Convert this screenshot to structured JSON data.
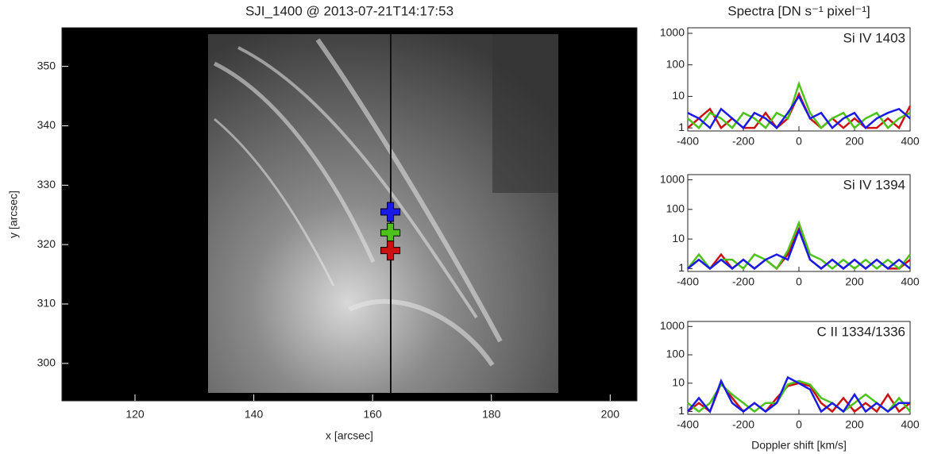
{
  "chart_data": [
    {
      "type": "image",
      "title": "SJI_1400 @ 2013-07-21T14:17:53",
      "xlabel": "x [arcsec]",
      "ylabel": "y [arcsec]",
      "xlim": [
        107.7,
        204.5
      ],
      "ylim": [
        293.7,
        356.5
      ],
      "xticks": [
        120,
        140,
        160,
        180,
        200
      ],
      "yticks": [
        300,
        310,
        320,
        330,
        340,
        350
      ],
      "markers": {
        "x": [
          163,
          163,
          163
        ],
        "y": [
          325.5,
          322,
          319
        ],
        "colors": [
          "#1a1ae6",
          "#4cc21a",
          "#cc1111"
        ]
      }
    },
    {
      "type": "line",
      "label": "Si IV 1403",
      "log_y": true,
      "xlim": [
        -400,
        400
      ],
      "ylim": [
        0.8,
        1500
      ],
      "xticks": [
        -400,
        -200,
        0,
        200,
        400
      ],
      "yticks": [
        1,
        10,
        100,
        1000
      ],
      "x": [
        -400,
        -360,
        -320,
        -280,
        -240,
        -200,
        -160,
        -120,
        -80,
        -40,
        0,
        40,
        80,
        120,
        160,
        200,
        240,
        280,
        320,
        360,
        400
      ],
      "series": [
        {
          "color": "#cc1111",
          "values": [
            1,
            2,
            4,
            1,
            2,
            1,
            1,
            3,
            1,
            2,
            12,
            2,
            1,
            2,
            1,
            2,
            1,
            1,
            2,
            1,
            5
          ]
        },
        {
          "color": "#4cc21a",
          "values": [
            2,
            1,
            3,
            2,
            1,
            3,
            2,
            1,
            3,
            2,
            25,
            3,
            1,
            2,
            3,
            1,
            2,
            3,
            1,
            2,
            3
          ]
        },
        {
          "color": "#1a1ae6",
          "values": [
            3,
            2,
            1,
            4,
            2,
            1,
            3,
            2,
            1,
            3,
            10,
            2,
            3,
            1,
            2,
            3,
            1,
            2,
            3,
            4,
            2
          ]
        }
      ]
    },
    {
      "type": "line",
      "label": "Si IV 1394",
      "log_y": true,
      "xlim": [
        -400,
        400
      ],
      "ylim": [
        0.8,
        1500
      ],
      "xticks": [
        -400,
        -200,
        0,
        200,
        400
      ],
      "yticks": [
        1,
        10,
        100,
        1000
      ],
      "x": [
        -400,
        -360,
        -320,
        -280,
        -240,
        -200,
        -160,
        -120,
        -80,
        -40,
        0,
        40,
        80,
        120,
        160,
        200,
        240,
        280,
        320,
        360,
        400
      ],
      "series": [
        {
          "color": "#cc1111",
          "values": [
            1,
            2,
            1,
            3,
            1,
            2,
            1,
            2,
            1,
            3,
            22,
            2,
            1,
            2,
            1,
            2,
            1,
            2,
            1,
            1,
            2
          ]
        },
        {
          "color": "#4cc21a",
          "values": [
            1,
            3,
            1,
            2,
            2,
            1,
            3,
            2,
            1,
            4,
            35,
            3,
            2,
            1,
            2,
            1,
            2,
            1,
            2,
            1,
            3
          ]
        },
        {
          "color": "#1a1ae6",
          "values": [
            1,
            2,
            1,
            2,
            1,
            2,
            1,
            2,
            3,
            2,
            20,
            2,
            1,
            2,
            1,
            2,
            1,
            2,
            1,
            2,
            1
          ]
        }
      ]
    },
    {
      "type": "line",
      "label": "C II 1334/1336",
      "log_y": true,
      "xlim": [
        -400,
        400
      ],
      "ylim": [
        0.8,
        1500
      ],
      "xticks": [
        -400,
        -200,
        0,
        200,
        400
      ],
      "yticks": [
        1,
        10,
        100,
        1000
      ],
      "xlabel": "Doppler shift [km/s]",
      "x": [
        -400,
        -360,
        -320,
        -280,
        -240,
        -200,
        -160,
        -120,
        -80,
        -40,
        0,
        40,
        80,
        120,
        160,
        200,
        240,
        280,
        320,
        360,
        400
      ],
      "series": [
        {
          "color": "#cc1111",
          "values": [
            1,
            2,
            1,
            10,
            3,
            1,
            2,
            1,
            3,
            8,
            10,
            8,
            2,
            1,
            3,
            1,
            2,
            1,
            4,
            1,
            2
          ]
        },
        {
          "color": "#4cc21a",
          "values": [
            2,
            1,
            2,
            9,
            4,
            2,
            1,
            2,
            2,
            9,
            12,
            9,
            3,
            2,
            1,
            2,
            4,
            2,
            1,
            3,
            1
          ]
        },
        {
          "color": "#1a1ae6",
          "values": [
            1,
            3,
            1,
            12,
            2,
            1,
            2,
            1,
            2,
            16,
            10,
            6,
            1,
            2,
            1,
            4,
            1,
            2,
            1,
            2,
            2
          ]
        }
      ]
    },
    {
      "type": "header",
      "title": "Spectra [DN s⁻¹ pixel⁻¹]"
    }
  ]
}
